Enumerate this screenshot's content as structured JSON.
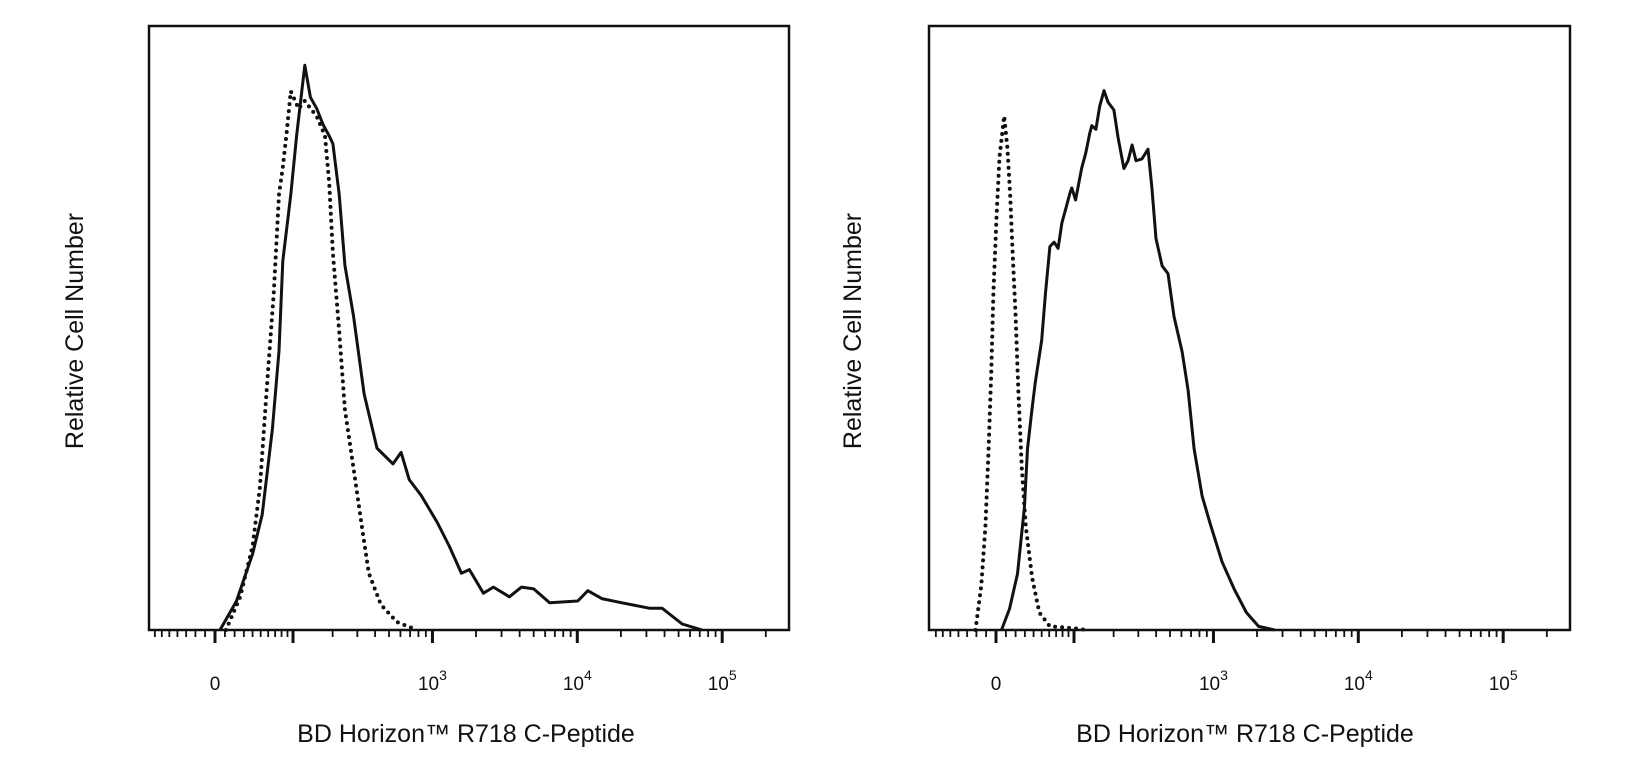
{
  "chart_data": [
    {
      "type": "line",
      "xlabel": "BD Horizon™ R718  C-Peptide",
      "ylabel": "Relative Cell Number",
      "x_scale": "biexponential",
      "xlim": [
        -30,
        300000
      ],
      "ylim": [
        0,
        100
      ],
      "grid": false,
      "x_tick_labels": [
        {
          "value": 0,
          "base": "0",
          "exp": ""
        },
        {
          "value": 1000,
          "base": "10",
          "exp": "3"
        },
        {
          "value": 10000,
          "base": "10",
          "exp": "4"
        },
        {
          "value": 100000,
          "base": "10",
          "exp": "5"
        }
      ],
      "series": [
        {
          "style": "solid",
          "color": "#111111",
          "x": [
            5,
            22,
            40,
            52,
            66,
            76,
            82,
            96,
            107,
            124,
            137,
            153,
            170,
            189,
            201,
            223,
            245,
            282,
            335,
            412,
            533,
            607,
            690,
            835,
            1080,
            1306,
            1584,
            1800,
            2250,
            2637,
            3400,
            4120,
            5000,
            6440,
            10080,
            11820,
            14750,
            20300,
            31750,
            38530,
            52950,
            72700
          ],
          "y": [
            0,
            4.8,
            12.6,
            19.1,
            33.3,
            46.2,
            61.1,
            72.1,
            81.8,
            93.5,
            88.2,
            86.3,
            83.7,
            81.8,
            80.5,
            72.1,
            60.4,
            52.0,
            39.1,
            30.1,
            27.5,
            29.4,
            24.9,
            22.3,
            17.8,
            13.9,
            9.4,
            10.0,
            6.1,
            7.1,
            5.5,
            7.1,
            6.8,
            4.5,
            4.8,
            6.5,
            5.2,
            4.5,
            3.6,
            3.6,
            1.0,
            0
          ]
        },
        {
          "style": "dotted",
          "color": "#111111",
          "x": [
            11,
            26,
            40,
            49,
            58,
            68,
            76,
            82,
            88,
            96,
            111,
            124,
            153,
            176,
            189,
            201,
            223,
            245,
            282,
            323,
            361,
            439,
            568,
            785
          ],
          "y": [
            0,
            5.5,
            13.9,
            23.6,
            39.8,
            55.9,
            72.1,
            76.6,
            81.8,
            89.2,
            86.3,
            87.6,
            85.0,
            81.8,
            74.0,
            62.4,
            49.4,
            36.5,
            26.8,
            17.1,
            9.4,
            4.2,
            1.3,
            0
          ]
        }
      ]
    },
    {
      "type": "line",
      "xlabel": "BD Horizon™ R718  C-Peptide",
      "ylabel": "Relative Cell Number",
      "x_scale": "biexponential",
      "xlim": [
        -30,
        300000
      ],
      "ylim": [
        0,
        100
      ],
      "grid": false,
      "x_tick_labels": [
        {
          "value": 0,
          "base": "0",
          "exp": ""
        },
        {
          "value": 1000,
          "base": "10",
          "exp": "3"
        },
        {
          "value": 10000,
          "base": "10",
          "exp": "4"
        },
        {
          "value": 100000,
          "base": "10",
          "exp": "5"
        }
      ],
      "series": [
        {
          "style": "solid",
          "color": "#111111",
          "x": [
            5.5,
            13.7,
            22,
            29.5,
            33,
            38,
            42,
            50,
            55,
            61,
            67,
            73,
            79,
            86,
            93,
            96,
            103,
            115,
            124,
            133,
            138,
            148,
            158,
            170,
            182,
            201,
            215,
            237,
            254,
            271,
            289,
            318,
            351,
            374,
            399,
            440,
            484,
            533,
            607,
            667,
            735,
            834,
            947,
            1146,
            1388,
            1689,
            2050,
            2646
          ],
          "y": [
            0,
            3.5,
            9.3,
            20.3,
            30.0,
            36.4,
            40.9,
            48.0,
            55.8,
            63.5,
            64.2,
            63.2,
            67.4,
            70.0,
            72.5,
            73.2,
            71.2,
            76.4,
            79.0,
            82.2,
            83.5,
            82.9,
            86.7,
            89.3,
            87.4,
            86.1,
            81.6,
            76.4,
            77.7,
            80.3,
            77.7,
            78.0,
            79.6,
            73.2,
            64.8,
            60.3,
            59.0,
            51.9,
            46.1,
            39.7,
            30.0,
            22.2,
            17.7,
            11.3,
            6.8,
            2.9,
            0.6,
            0
          ]
        },
        {
          "style": "dotted",
          "color": "#111111",
          "x": [
            -21,
            -14.9,
            -10.7,
            -7.4,
            -4.7,
            -2.6,
            0.6,
            3.5,
            8.3,
            11.6,
            14.4,
            17.0,
            19.9,
            22.9,
            26.6,
            31.1,
            38.3,
            47,
            61,
            100,
            126
          ],
          "y": [
            0,
            7.4,
            17.1,
            30.0,
            42.9,
            55.8,
            68.7,
            78.3,
            85.1,
            79.6,
            71.9,
            62.2,
            52.5,
            39.7,
            26.8,
            17.1,
            8.7,
            2.9,
            0.6,
            0.3,
            0
          ]
        }
      ]
    }
  ]
}
